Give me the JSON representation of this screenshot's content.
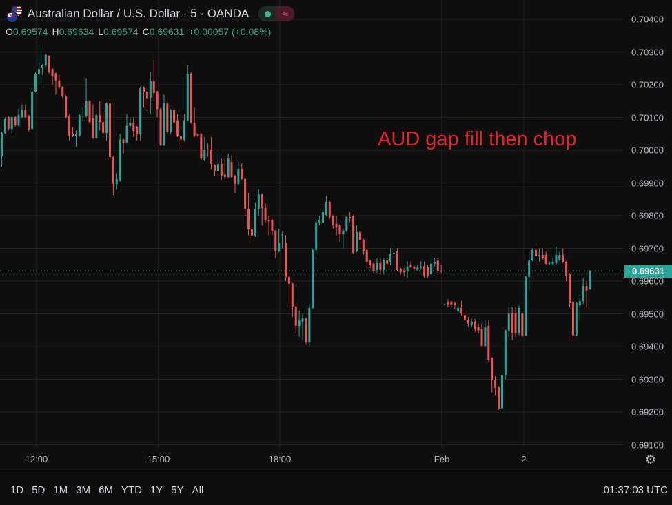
{
  "header": {
    "title": "Australian Dollar / U.S. Dollar · 5 · OANDA",
    "market_status_icon": "green-dot-icon",
    "data_delay_icon": "approx-icon",
    "data_delay_symbol": "≈",
    "ohlc": {
      "o_label": "O",
      "o": "0.69574",
      "h_label": "H",
      "h": "0.69634",
      "l_label": "L",
      "l": "0.69574",
      "c_label": "C",
      "c": "0.69631",
      "change": "+0.00057 (+0.08%)"
    }
  },
  "annotation": "AUD gap fill then chop",
  "last_price_label": "0.69631",
  "bottom_bar": {
    "ranges": [
      "1D",
      "5D",
      "1M",
      "3M",
      "6M",
      "YTD",
      "1Y",
      "5Y",
      "All"
    ],
    "clock": "01:37:03 UTC"
  },
  "colors": {
    "up": "#26a69a",
    "down": "#ef5350",
    "background": "#0f0f0f",
    "grid": "#222222",
    "annotation": "#e3242b"
  },
  "chart_data": {
    "type": "candlestick",
    "title": "Australian Dollar / U.S. Dollar · 5 · OANDA",
    "interval": "5",
    "ylim": [
      0.691,
      0.7045
    ],
    "y_ticks": [
      "0.70400",
      "0.70300",
      "0.70200",
      "0.70100",
      "0.70000",
      "0.69900",
      "0.69800",
      "0.69700",
      "0.69600",
      "0.69500",
      "0.69400",
      "0.69300",
      "0.69200",
      "0.69100"
    ],
    "x_ticks": [
      "12:00",
      "15:00",
      "18:00",
      "Feb",
      "2"
    ],
    "grid": true,
    "last_price": 0.69631,
    "candles_ohlc": [
      [
        0.69981,
        0.70056,
        0.6995,
        0.70053
      ],
      [
        0.70053,
        0.70099,
        0.7005,
        0.70095
      ],
      [
        0.70101,
        0.70105,
        0.7006,
        0.70065
      ],
      [
        0.70065,
        0.70104,
        0.7005,
        0.70101
      ],
      [
        0.70101,
        0.70104,
        0.70072,
        0.70076
      ],
      [
        0.70076,
        0.70126,
        0.70072,
        0.70107
      ],
      [
        0.70101,
        0.7014,
        0.70098,
        0.70122
      ],
      [
        0.70122,
        0.7014,
        0.70098,
        0.70101
      ],
      [
        0.70105,
        0.70108,
        0.70058,
        0.70063
      ],
      [
        0.70065,
        0.70182,
        0.70062,
        0.70179
      ],
      [
        0.70179,
        0.70238,
        0.70176,
        0.70234
      ],
      [
        0.70232,
        0.70322,
        0.702,
        0.70248
      ],
      [
        0.70253,
        0.70263,
        0.7023,
        0.70259
      ],
      [
        0.70259,
        0.70295,
        0.70255,
        0.70291
      ],
      [
        0.70287,
        0.7029,
        0.70234,
        0.70238
      ],
      [
        0.70248,
        0.70252,
        0.702,
        0.70227
      ],
      [
        0.70234,
        0.70238,
        0.7017,
        0.70213
      ],
      [
        0.70213,
        0.7023,
        0.70188,
        0.70192
      ],
      [
        0.70192,
        0.70196,
        0.7016,
        0.70164
      ],
      [
        0.70164,
        0.70168,
        0.70097,
        0.70101
      ],
      [
        0.70105,
        0.70108,
        0.7003,
        0.70044
      ],
      [
        0.70051,
        0.7007,
        0.7004,
        0.70044
      ],
      [
        0.70044,
        0.7006,
        0.7001,
        0.70049
      ],
      [
        0.70044,
        0.7011,
        0.7004,
        0.70107
      ],
      [
        0.70105,
        0.7013,
        0.7009,
        0.70105
      ],
      [
        0.70105,
        0.7022,
        0.701,
        0.7015
      ],
      [
        0.7015,
        0.70153,
        0.70082,
        0.70086
      ],
      [
        0.70097,
        0.7014,
        0.70034,
        0.70038
      ],
      [
        0.70038,
        0.70111,
        0.70034,
        0.70107
      ],
      [
        0.70107,
        0.7015,
        0.7006,
        0.70086
      ],
      [
        0.70086,
        0.7012,
        0.7004,
        0.70053
      ],
      [
        0.70053,
        0.70146,
        0.7003,
        0.70143
      ],
      [
        0.70143,
        0.70146,
        0.69975,
        0.69979
      ],
      [
        0.69979,
        0.69982,
        0.69863,
        0.69897
      ],
      [
        0.69897,
        0.6993,
        0.6988,
        0.69912
      ],
      [
        0.69908,
        0.7005,
        0.69904,
        0.70032
      ],
      [
        0.70032,
        0.70036,
        0.6999,
        0.70021
      ],
      [
        0.70023,
        0.7011,
        0.7002,
        0.70074
      ],
      [
        0.70074,
        0.701,
        0.7007,
        0.70084
      ],
      [
        0.70084,
        0.701,
        0.7004,
        0.70059
      ],
      [
        0.7007,
        0.70074,
        0.7003,
        0.70049
      ],
      [
        0.70049,
        0.70194,
        0.7003,
        0.7019
      ],
      [
        0.70192,
        0.70195,
        0.7013,
        0.70179
      ],
      [
        0.70179,
        0.70182,
        0.7012,
        0.70158
      ],
      [
        0.7016,
        0.7024,
        0.7011,
        0.70211
      ],
      [
        0.70211,
        0.70275,
        0.7015,
        0.70175
      ],
      [
        0.70179,
        0.70182,
        0.701,
        0.70126
      ],
      [
        0.70126,
        0.7013,
        0.70013,
        0.70017
      ],
      [
        0.70017,
        0.7017,
        0.70013,
        0.70143
      ],
      [
        0.70143,
        0.70147,
        0.7005,
        0.70055
      ],
      [
        0.70055,
        0.70126,
        0.7005,
        0.70122
      ],
      [
        0.70122,
        0.7013,
        0.7008,
        0.70084
      ],
      [
        0.70091,
        0.7011,
        0.7004,
        0.70044
      ],
      [
        0.70042,
        0.7006,
        0.7001,
        0.70032
      ],
      [
        0.70032,
        0.7011,
        0.70028,
        0.70091
      ],
      [
        0.70091,
        0.70259,
        0.70088,
        0.70234
      ],
      [
        0.70234,
        0.70238,
        0.7008,
        0.70084
      ],
      [
        0.70084,
        0.7013,
        0.7004,
        0.70044
      ],
      [
        0.70049,
        0.70052,
        0.7004,
        0.70044
      ],
      [
        0.70049,
        0.70053,
        0.6997,
        0.69975
      ],
      [
        0.69971,
        0.7004,
        0.69968,
        0.70002
      ],
      [
        0.70002,
        0.7002,
        0.6998,
        0.7
      ],
      [
        0.70002,
        0.7004,
        0.6994,
        0.69958
      ],
      [
        0.69954,
        0.69957,
        0.6992,
        0.69937
      ],
      [
        0.69937,
        0.6999,
        0.69934,
        0.69958
      ],
      [
        0.69958,
        0.69975,
        0.6991,
        0.69922
      ],
      [
        0.69926,
        0.69975,
        0.6991,
        0.69918
      ],
      [
        0.69918,
        0.6999,
        0.69915,
        0.69975
      ],
      [
        0.69964,
        0.69985,
        0.69915,
        0.69918
      ],
      [
        0.69922,
        0.69925,
        0.6987,
        0.69897
      ],
      [
        0.69897,
        0.69965,
        0.69894,
        0.69943
      ],
      [
        0.69943,
        0.6996,
        0.69909,
        0.69912
      ],
      [
        0.69912,
        0.69915,
        0.698,
        0.69821
      ],
      [
        0.69821,
        0.6987,
        0.6974,
        0.69758
      ],
      [
        0.69758,
        0.6979,
        0.6973,
        0.69739
      ],
      [
        0.69739,
        0.6984,
        0.69735,
        0.69821
      ],
      [
        0.69821,
        0.6988,
        0.698,
        0.69865
      ],
      [
        0.69865,
        0.69868,
        0.6977,
        0.69823
      ],
      [
        0.69823,
        0.6984,
        0.6978,
        0.69785
      ],
      [
        0.69785,
        0.698,
        0.6974,
        0.69783
      ],
      [
        0.69785,
        0.6979,
        0.6974,
        0.69754
      ],
      [
        0.69754,
        0.69757,
        0.6967,
        0.69691
      ],
      [
        0.69691,
        0.6976,
        0.69688,
        0.69718
      ],
      [
        0.69743,
        0.6975,
        0.697,
        0.69743
      ],
      [
        0.69718,
        0.6974,
        0.696,
        0.69613
      ],
      [
        0.69613,
        0.69616,
        0.6953,
        0.69592
      ],
      [
        0.69592,
        0.69595,
        0.6949,
        0.69522
      ],
      [
        0.69522,
        0.69525,
        0.6944,
        0.69463
      ],
      [
        0.69463,
        0.6951,
        0.6943,
        0.6948
      ],
      [
        0.69476,
        0.695,
        0.6942,
        0.69486
      ],
      [
        0.69486,
        0.69489,
        0.69405,
        0.69413
      ],
      [
        0.69413,
        0.6953,
        0.69402,
        0.69518
      ],
      [
        0.69518,
        0.69698,
        0.69515,
        0.69695
      ],
      [
        0.69695,
        0.6979,
        0.6968,
        0.69779
      ],
      [
        0.69779,
        0.698,
        0.6977,
        0.69785
      ],
      [
        0.69779,
        0.6983,
        0.6977,
        0.69811
      ],
      [
        0.69802,
        0.6986,
        0.698,
        0.69842
      ],
      [
        0.69842,
        0.69845,
        0.6979,
        0.69796
      ],
      [
        0.698,
        0.69803,
        0.6976,
        0.69771
      ],
      [
        0.69775,
        0.698,
        0.6974,
        0.69764
      ],
      [
        0.69771,
        0.69774,
        0.6972,
        0.69743
      ],
      [
        0.69743,
        0.6976,
        0.697,
        0.69754
      ],
      [
        0.69754,
        0.69799,
        0.6975,
        0.69796
      ],
      [
        0.69796,
        0.6981,
        0.6978,
        0.69792
      ],
      [
        0.698,
        0.69803,
        0.69683,
        0.69686
      ],
      [
        0.69691,
        0.6977,
        0.69688,
        0.6975
      ],
      [
        0.6975,
        0.69753,
        0.697,
        0.69726
      ],
      [
        0.69726,
        0.69729,
        0.6968,
        0.69691
      ],
      [
        0.69695,
        0.69698,
        0.6964,
        0.69659
      ],
      [
        0.69663,
        0.69666,
        0.6964,
        0.69649
      ],
      [
        0.69653,
        0.69656,
        0.69625,
        0.69632
      ],
      [
        0.69634,
        0.6967,
        0.69625,
        0.69655
      ],
      [
        0.69655,
        0.6967,
        0.6962,
        0.69634
      ],
      [
        0.69634,
        0.6967,
        0.6962,
        0.69665
      ],
      [
        0.69663,
        0.6967,
        0.6964,
        0.69653
      ],
      [
        0.69659,
        0.697,
        0.6965,
        0.69684
      ],
      [
        0.69684,
        0.6971,
        0.6968,
        0.69686
      ],
      [
        0.69691,
        0.697,
        0.6963,
        0.69634
      ],
      [
        0.69638,
        0.69641,
        0.6962,
        0.69627
      ],
      [
        0.69632,
        0.6964,
        0.69615,
        0.69627
      ],
      [
        0.69632,
        0.6966,
        0.6961,
        0.69644
      ],
      [
        0.69651,
        0.6966,
        0.6964,
        0.69642
      ],
      [
        0.69644,
        0.6965,
        0.6963,
        0.69638
      ],
      [
        0.69634,
        0.6965,
        0.6963,
        0.69642
      ],
      [
        0.69642,
        0.6966,
        0.69635,
        0.69644
      ],
      [
        0.69646,
        0.6966,
        0.6961,
        0.69617
      ],
      [
        0.69642,
        0.6965,
        0.6961,
        0.69617
      ],
      [
        0.69621,
        0.6967,
        0.6961,
        0.69653
      ],
      [
        0.69653,
        0.6967,
        0.69645,
        0.69659
      ],
      [
        0.69663,
        0.6967,
        0.69625,
        0.69632
      ],
      [
        0.69632,
        0.6965,
        0.69625,
        0.6963
      ],
      [
        0.69529,
        0.69532,
        0.69526,
        0.69529
      ],
      [
        0.69537,
        0.69545,
        0.6952,
        0.69529
      ],
      [
        0.69537,
        0.6954,
        0.6952,
        0.69529
      ],
      [
        0.69533,
        0.69536,
        0.69515,
        0.69526
      ],
      [
        0.69508,
        0.6953,
        0.695,
        0.69518
      ],
      [
        0.69518,
        0.6954,
        0.69495,
        0.69501
      ],
      [
        0.69497,
        0.6951,
        0.69475,
        0.6948
      ],
      [
        0.6948,
        0.6949,
        0.6946,
        0.6947
      ],
      [
        0.69466,
        0.69485,
        0.6946,
        0.69476
      ],
      [
        0.69476,
        0.69485,
        0.69445,
        0.69455
      ],
      [
        0.69459,
        0.6947,
        0.6944,
        0.69449
      ],
      [
        0.69453,
        0.6947,
        0.694,
        0.69402
      ],
      [
        0.69402,
        0.6948,
        0.694,
        0.69459
      ],
      [
        0.69463,
        0.6948,
        0.69355,
        0.6936
      ],
      [
        0.69364,
        0.69367,
        0.6926,
        0.69297
      ],
      [
        0.69297,
        0.6931,
        0.6925,
        0.69274
      ],
      [
        0.69276,
        0.69279,
        0.69207,
        0.69211
      ],
      [
        0.69211,
        0.6933,
        0.69208,
        0.69312
      ],
      [
        0.69312,
        0.69452,
        0.693,
        0.69449
      ],
      [
        0.69449,
        0.6952,
        0.6943,
        0.69501
      ],
      [
        0.69501,
        0.6952,
        0.6942,
        0.69442
      ],
      [
        0.69501,
        0.6952,
        0.6943,
        0.69442
      ],
      [
        0.69442,
        0.69525,
        0.69435,
        0.69518
      ],
      [
        0.69501,
        0.69504,
        0.6943,
        0.69434
      ],
      [
        0.69434,
        0.69616,
        0.69431,
        0.69613
      ],
      [
        0.69613,
        0.6969,
        0.6957,
        0.69663
      ],
      [
        0.69663,
        0.697,
        0.6966,
        0.69695
      ],
      [
        0.69695,
        0.69705,
        0.6967,
        0.69676
      ],
      [
        0.69676,
        0.697,
        0.6966,
        0.6968
      ],
      [
        0.6968,
        0.697,
        0.69665,
        0.6967
      ],
      [
        0.6968,
        0.6969,
        0.6965,
        0.69653
      ],
      [
        0.69655,
        0.6966,
        0.6965,
        0.69655
      ],
      [
        0.69653,
        0.6967,
        0.6965,
        0.69659
      ],
      [
        0.69655,
        0.69705,
        0.6965,
        0.6968
      ],
      [
        0.69665,
        0.6969,
        0.6966,
        0.6968
      ],
      [
        0.6968,
        0.697,
        0.69655,
        0.69659
      ],
      [
        0.69659,
        0.69662,
        0.696,
        0.69617
      ],
      [
        0.69621,
        0.69624,
        0.6952,
        0.69533
      ],
      [
        0.69537,
        0.6954,
        0.69417,
        0.69434
      ],
      [
        0.69434,
        0.69536,
        0.69431,
        0.69533
      ],
      [
        0.69526,
        0.6956,
        0.6948,
        0.69539
      ],
      [
        0.69539,
        0.6961,
        0.6953,
        0.69585
      ],
      [
        0.69585,
        0.696,
        0.69518,
        0.69571
      ],
      [
        0.69574,
        0.69634,
        0.69574,
        0.69631
      ]
    ],
    "gap_after_index": 130
  }
}
